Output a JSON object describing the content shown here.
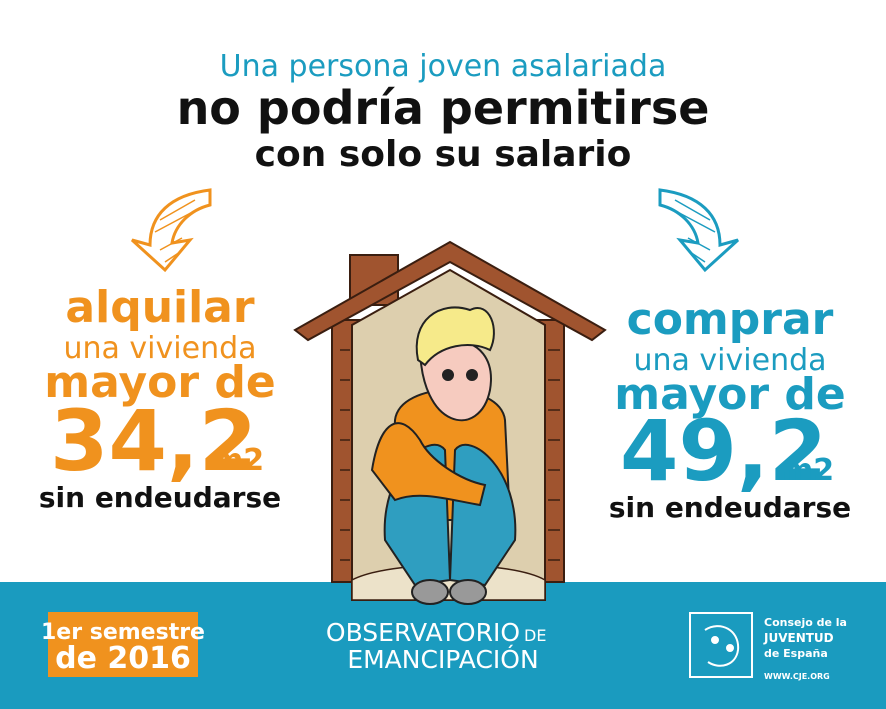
{
  "header": {
    "line1": "Una persona joven asalariada",
    "line2": "no podría permitirse",
    "line3": "con solo su salario"
  },
  "left": {
    "verb": "alquilar",
    "object": "una vivienda",
    "comparison": "mayor de",
    "amount": "34,2",
    "unit": "m2",
    "condition": "sin endeudarse"
  },
  "right": {
    "verb": "comprar",
    "object": "una vivienda",
    "comparison": "mayor de",
    "amount": "49,2",
    "unit": "m2",
    "condition": "sin endeudarse"
  },
  "footer": {
    "period": {
      "line1": "1er semestre",
      "line2": "de 2016"
    },
    "observatory": {
      "line1": "OBSERVATORIO",
      "suffix": "DE",
      "line2": "EMANCIPACIÓN"
    },
    "organization": {
      "line1": "Consejo de la",
      "line2": "JUVENTUD",
      "line3": "de España",
      "url": "WWW.CJE.ORG"
    }
  }
}
